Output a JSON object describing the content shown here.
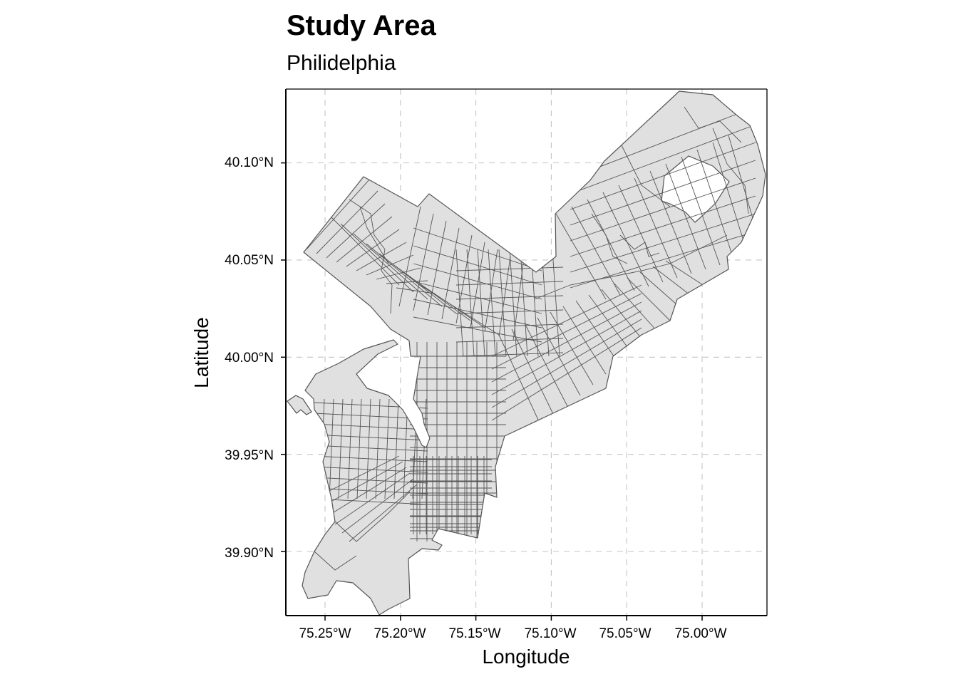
{
  "title": "Study Area",
  "subtitle": "Philidelphia",
  "axes": {
    "xlabel": "Longitude",
    "ylabel": "Latitude",
    "x_ticks": [
      "75.25°W",
      "75.20°W",
      "75.15°W",
      "75.10°W",
      "75.05°W",
      "75.00°W"
    ],
    "y_ticks": [
      "40.10°N",
      "40.05°N",
      "40.00°N",
      "39.95°N",
      "39.90°N"
    ]
  },
  "map": {
    "features": "census tract boundaries",
    "fill_color": "#e0e0e0",
    "border_color": "#555555",
    "gridlines": "dashed",
    "grid_color": "#c4c4c4"
  },
  "chart_data": {
    "type": "map",
    "title": "Study Area",
    "subtitle": "Philidelphia",
    "xlabel": "Longitude",
    "ylabel": "Latitude",
    "xlim": [
      -75.276,
      -74.957
    ],
    "ylim": [
      39.867,
      40.138
    ],
    "x_ticks": [
      -75.25,
      -75.2,
      -75.15,
      -75.1,
      -75.05,
      -75.0
    ],
    "y_ticks": [
      40.1,
      40.05,
      40.0,
      39.95,
      39.9
    ],
    "grid": true
  }
}
